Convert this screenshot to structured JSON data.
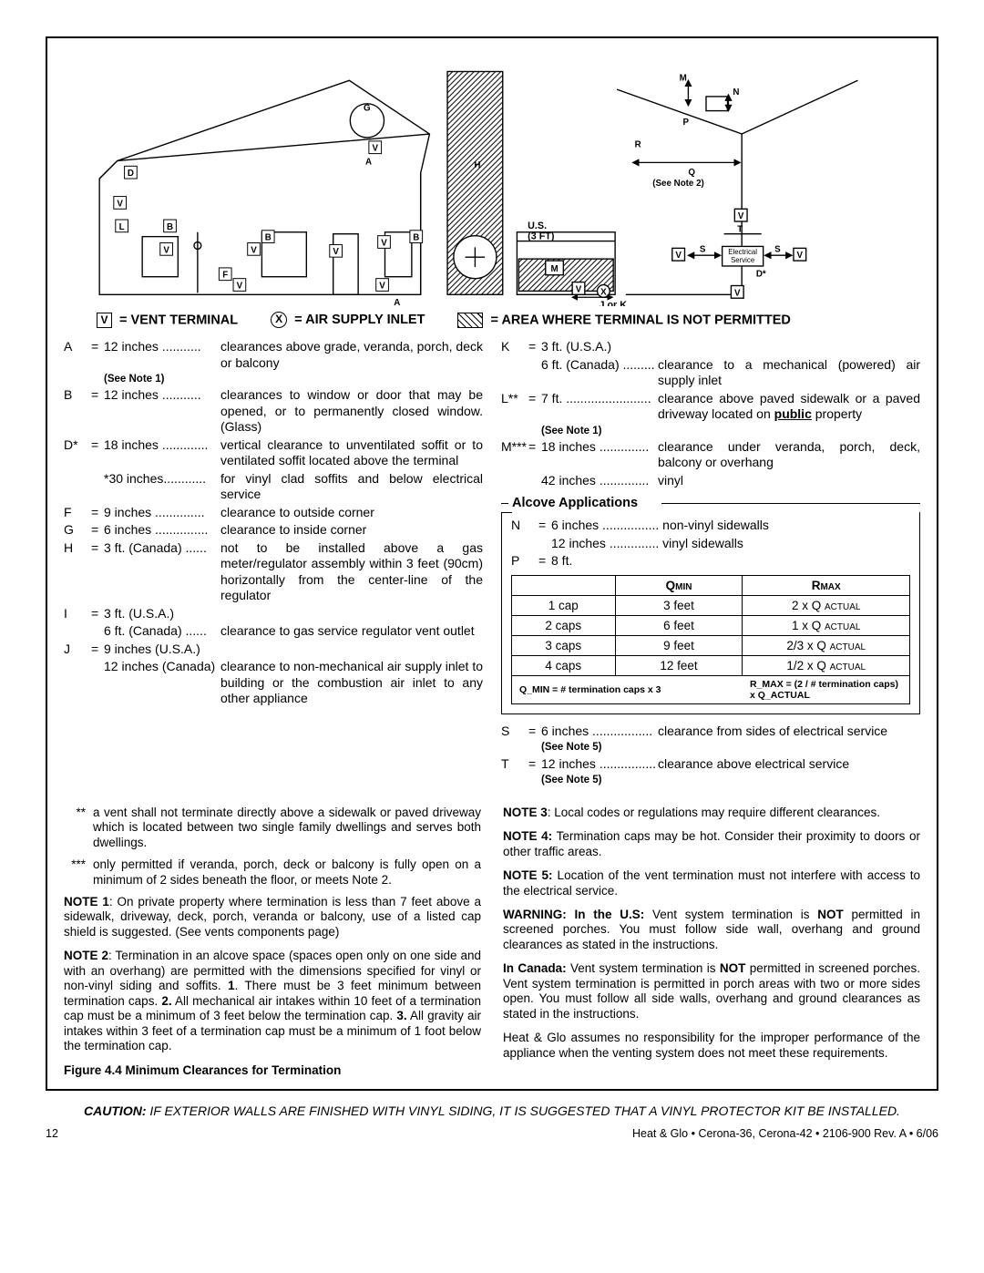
{
  "legend": {
    "v": "= VENT  TERMINAL",
    "x": "= AIR SUPPLY INLET",
    "hatch": "= AREA WHERE TERMINAL IS NOT PERMITTED"
  },
  "left_items": [
    {
      "l": "A",
      "eq": "=",
      "dim": "12 inches ...........",
      "desc": "clearances above grade, veranda, porch, deck or balcony",
      "note": "(See Note 1)"
    },
    {
      "l": "B",
      "eq": "=",
      "dim": "12 inches ...........",
      "desc": "clearances to window or door that may be opened, or to permanently closed window. (Glass)"
    },
    {
      "l": "D*",
      "eq": "=",
      "dim": "18 inches .............",
      "desc": "vertical clearance to unventilated soffit or to ventilated soffit located above the terminal"
    },
    {
      "l": "",
      "eq": "",
      "dim": "*30 inches............",
      "desc": "for vinyl clad soffits and below electrical service"
    },
    {
      "l": "F",
      "eq": "=",
      "dim": "9 inches ..............",
      "desc": "clearance to outside corner"
    },
    {
      "l": "G",
      "eq": "=",
      "dim": "6 inches ...............",
      "desc": "clearance to inside corner"
    },
    {
      "l": "H",
      "eq": "=",
      "dim": "3 ft. (Canada) ......",
      "desc": "not to be installed above a gas meter/regulator assembly within 3 feet (90cm) horizontally from the center-line of the regulator"
    },
    {
      "l": "I",
      "eq": "=",
      "dim": "3 ft. (U.S.A.)",
      "desc": ""
    },
    {
      "l": "",
      "eq": "",
      "dim": "6 ft. (Canada) ......",
      "desc": "clearance to gas service regulator vent outlet"
    },
    {
      "l": "J",
      "eq": "=",
      "dim": "9 inches (U.S.A.)",
      "desc": ""
    },
    {
      "l": "",
      "eq": "",
      "dim": "12 inches (Canada)",
      "desc": "clearance to non-mechanical air supply inlet to building or the combustion air inlet to any other appliance"
    }
  ],
  "right_items": [
    {
      "l": "K",
      "eq": "=",
      "dim": "3 ft. (U.S.A.)",
      "desc": ""
    },
    {
      "l": "",
      "eq": "",
      "dim": "6 ft. (Canada) .........",
      "desc": "clearance to a mechanical (powered) air supply inlet"
    },
    {
      "l": "L**",
      "eq": "=",
      "dim": "7 ft. ........................",
      "desc": "clearance above paved sidewalk or a paved driveway located on <b><u>public</u></b> property",
      "note": "(See Note 1)"
    },
    {
      "l": "M***",
      "eq": "=",
      "dim": "18 inches ..............",
      "desc": "clearance under veranda, porch, deck, balcony or overhang"
    },
    {
      "l": "",
      "eq": "",
      "dim": "42 inches ..............",
      "desc": "vinyl"
    }
  ],
  "alcove": {
    "title": "Alcove Applications",
    "n1": "6 inches ................ non-vinyl sidewalls",
    "n2": "12 inches .............. vinyl sidewalls",
    "p": "8 ft.",
    "table": {
      "head": [
        "",
        "Q",
        "R"
      ],
      "head_sub": [
        "",
        "MIN",
        "MAX"
      ],
      "rows": [
        [
          "1 cap",
          "3 feet",
          "2 x Q ACTUAL"
        ],
        [
          "2 caps",
          "6 feet",
          "1 x Q ACTUAL"
        ],
        [
          "3 caps",
          "9 feet",
          "2/3 x Q ACTUAL"
        ],
        [
          "4 caps",
          "12 feet",
          "1/2 x Q ACTUAL"
        ]
      ],
      "formula_l": "Q_MIN = # termination caps x 3",
      "formula_r": "R_MAX = (2 / # termination caps) x Q_ACTUAL"
    }
  },
  "right_after": [
    {
      "l": "S",
      "eq": "=",
      "dim": "6 inches .................",
      "desc": "clearance from sides of electrical service",
      "note": "(See Note 5)"
    },
    {
      "l": "T",
      "eq": "=",
      "dim": "12 inches ................",
      "desc": "clearance above electrical service",
      "note": "(See Note 5)"
    }
  ],
  "ast_notes": [
    {
      "m": "**",
      "t": "a vent shall not terminate directly above a sidewalk or paved driveway which is located between two single family dwellings and serves both dwellings."
    },
    {
      "m": "***",
      "t": "only permitted if veranda, porch, deck or balcony is fully open on a minimum of 2 sides beneath the floor, or meets Note 2."
    }
  ],
  "notes_left": [
    "<b>NOTE 1</b>: On private property where termination is less than 7 feet above a sidewalk, driveway, deck, porch, veranda or balcony, use of a listed cap shield is suggested. (See vents components page)",
    "<b>NOTE 2</b>: Termination in an alcove space (spaces open only on one side and with an overhang) are permitted with the dimensions specified for vinyl or non-vinyl siding and soffits. <b>1</b>. There must be 3 feet minimum between termination caps. <b>2.</b> All mechanical air intakes within 10 feet of a termination cap must be a minimum of 3 feet below the termination cap. <b>3.</b> All gravity air intakes within 3 feet of a termination cap must be a minimum of 1 foot below the termination cap."
  ],
  "notes_right": [
    "<b>NOTE 3</b>: Local codes or regulations may require different clearances.",
    "<b>NOTE 4:</b> Termination caps may be hot. Consider their proximity to doors or other traffic areas.",
    "<b>NOTE 5:</b> Location of the vent termination must not interfere with access to the electrical service.",
    "<b>WARNING: In the U.S:</b> Vent system termination is <b>NOT</b> permitted in screened porches. You must follow side wall, overhang and ground clearances as stated in the instructions.",
    "<b>In Canada:</b> Vent system termination is <b>NOT</b> permitted in screened porches. Vent system termination is permitted in porch areas with two or more sides open. You must follow all side walls, overhang and ground clearances as stated in the instructions.",
    "Heat & Glo assumes no responsibility for the improper performance of the appliance when the venting system does not meet these requirements."
  ],
  "figure_caption": "Figure 4.4  Minimum Clearances for Termination",
  "caution": "IF EXTERIOR WALLS ARE FINISHED WITH VINYL SIDING, IT IS SUGGESTED THAT A VINYL PROTECTOR KIT BE INSTALLED.",
  "footer": {
    "page": "12",
    "right": "Heat & Glo  •  Cerona-36, Cerona-42  •  2106-900  Rev. A  •  6/06"
  },
  "diagram_labels": {
    "D": "D",
    "B": "B",
    "V": "V",
    "G": "G",
    "A": "A",
    "H": "H",
    "F": "F",
    "L": "L",
    "M": "M",
    "X": "X",
    "us": "U.S.",
    "threeft": "(3 FT)",
    "jork": "J or K",
    "Q": "Q",
    "seenote2": "(See Note 2)",
    "S": "S",
    "T": "T",
    "E": "Electrical",
    "E2": "Service",
    "Dstar": "D*",
    "N": "N",
    "P": "P",
    "R": "R"
  }
}
